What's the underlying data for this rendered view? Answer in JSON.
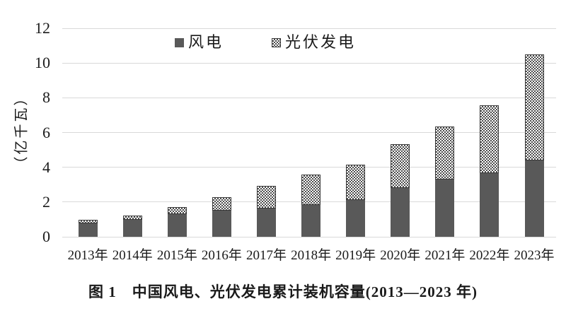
{
  "chart_data": {
    "type": "bar",
    "stacked": true,
    "caption": "图 1　中国风电、光伏发电累计装机容量(2013—2023 年)",
    "ylabel": "（亿千瓦）",
    "xlabel": "",
    "ylim": [
      0,
      12
    ],
    "yticks": [
      0,
      2,
      4,
      6,
      8,
      10,
      12
    ],
    "grid": "horizontal",
    "legend_position": "top-center",
    "categories": [
      "2013年",
      "2014年",
      "2015年",
      "2016年",
      "2017年",
      "2018年",
      "2019年",
      "2020年",
      "2021年",
      "2022年",
      "2023年"
    ],
    "series": [
      {
        "name": "风电",
        "pattern": "solid",
        "color": "#595959",
        "values": [
          0.77,
          0.96,
          1.29,
          1.49,
          1.64,
          1.84,
          2.1,
          2.81,
          3.28,
          3.65,
          4.41
        ]
      },
      {
        "name": "光伏发电",
        "pattern": "checker",
        "color": "#4d4d4d",
        "background": "#ffffff",
        "values": [
          0.19,
          0.28,
          0.43,
          0.77,
          1.3,
          1.74,
          2.04,
          2.53,
          3.06,
          3.93,
          6.09
        ]
      }
    ]
  },
  "colors": {
    "gridline": "#d9d9d9",
    "bar_dark": "#595959",
    "pattern_dark": "#4d4d4d",
    "text": "#1a1a1a",
    "background": "#ffffff"
  }
}
